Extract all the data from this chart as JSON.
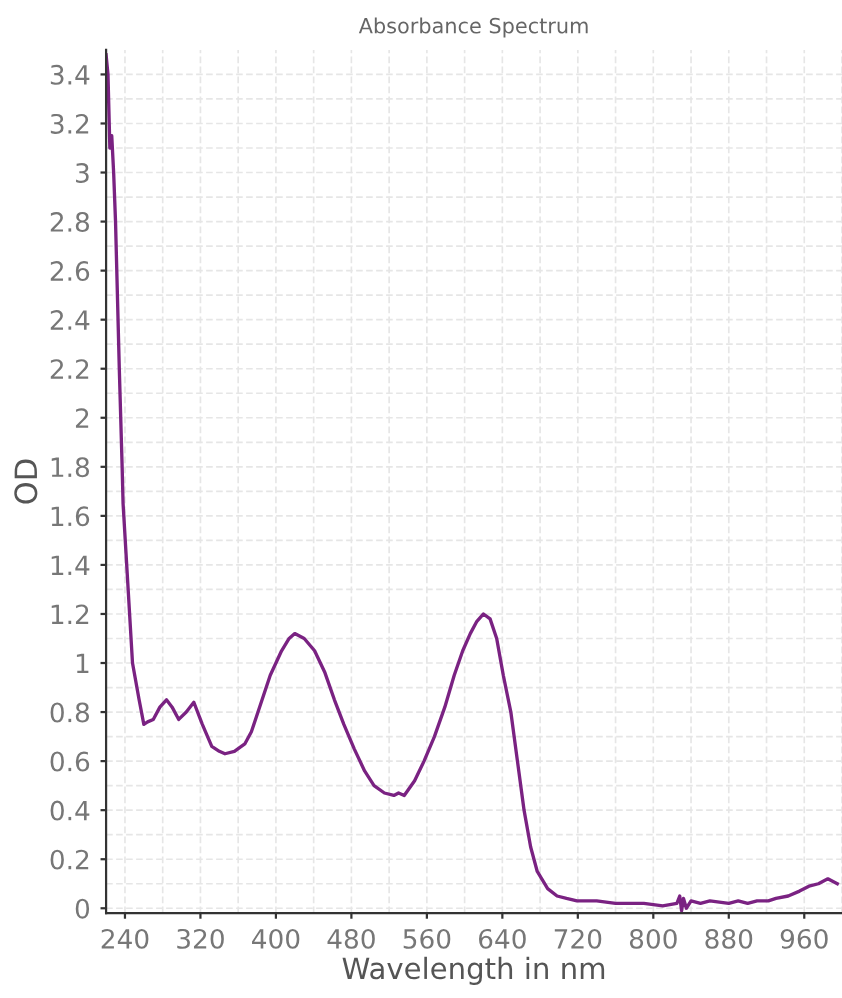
{
  "chart_data": {
    "type": "line",
    "title": "Absorbance Spectrum",
    "xlabel": "Wavelength in nm",
    "ylabel": "OD",
    "series": [
      {
        "color": "#7a2282",
        "x": [
          220,
          222,
          224,
          226,
          228,
          230,
          234,
          237,
          238,
          248,
          255,
          260,
          264,
          270,
          277,
          284,
          290,
          297,
          305,
          313,
          322,
          332,
          340,
          346,
          356,
          367,
          374,
          381,
          394,
          406,
          414,
          420,
          430,
          441,
          452,
          462,
          472,
          483,
          494,
          504,
          515,
          525,
          530,
          536,
          547,
          557,
          568,
          579,
          589,
          598,
          606,
          613,
          620,
          627,
          634,
          641,
          649,
          656,
          663,
          670,
          677,
          688,
          698,
          708,
          719,
          740,
          760,
          775,
          790,
          810,
          825,
          828,
          830,
          832,
          835,
          840,
          850,
          860,
          880,
          890,
          900,
          910,
          922,
          930,
          943,
          955,
          965,
          975,
          985,
          990,
          995
        ],
        "values": [
          3.48,
          3.4,
          3.1,
          3.15,
          3.0,
          2.8,
          2.2,
          1.8,
          1.65,
          1.0,
          0.85,
          0.75,
          0.76,
          0.77,
          0.82,
          0.85,
          0.82,
          0.77,
          0.8,
          0.84,
          0.75,
          0.66,
          0.64,
          0.63,
          0.64,
          0.67,
          0.72,
          0.8,
          0.95,
          1.05,
          1.1,
          1.12,
          1.1,
          1.05,
          0.96,
          0.85,
          0.75,
          0.65,
          0.56,
          0.5,
          0.47,
          0.46,
          0.47,
          0.46,
          0.52,
          0.6,
          0.7,
          0.82,
          0.95,
          1.05,
          1.12,
          1.17,
          1.2,
          1.18,
          1.1,
          0.95,
          0.8,
          0.6,
          0.4,
          0.25,
          0.15,
          0.08,
          0.05,
          0.04,
          0.03,
          0.03,
          0.02,
          0.02,
          0.02,
          0.01,
          0.02,
          0.05,
          -0.01,
          0.04,
          0.0,
          0.03,
          0.02,
          0.03,
          0.02,
          0.03,
          0.02,
          0.03,
          0.03,
          0.04,
          0.05,
          0.07,
          0.09,
          0.1,
          0.12,
          0.11,
          0.1
        ]
      }
    ],
    "xlim": [
      220,
      1000
    ],
    "ylim": [
      -0.02,
      3.5
    ],
    "xticks": [
      240,
      320,
      400,
      480,
      560,
      640,
      720,
      800,
      880,
      960
    ],
    "yticks": [
      0,
      0.2,
      0.4,
      0.6,
      0.8,
      1,
      1.2,
      1.4,
      1.6,
      1.8,
      2,
      2.2,
      2.4,
      2.6,
      2.8,
      3,
      3.2,
      3.4
    ],
    "grid": true,
    "legend": false,
    "line_style": "solid",
    "marker": "none"
  }
}
